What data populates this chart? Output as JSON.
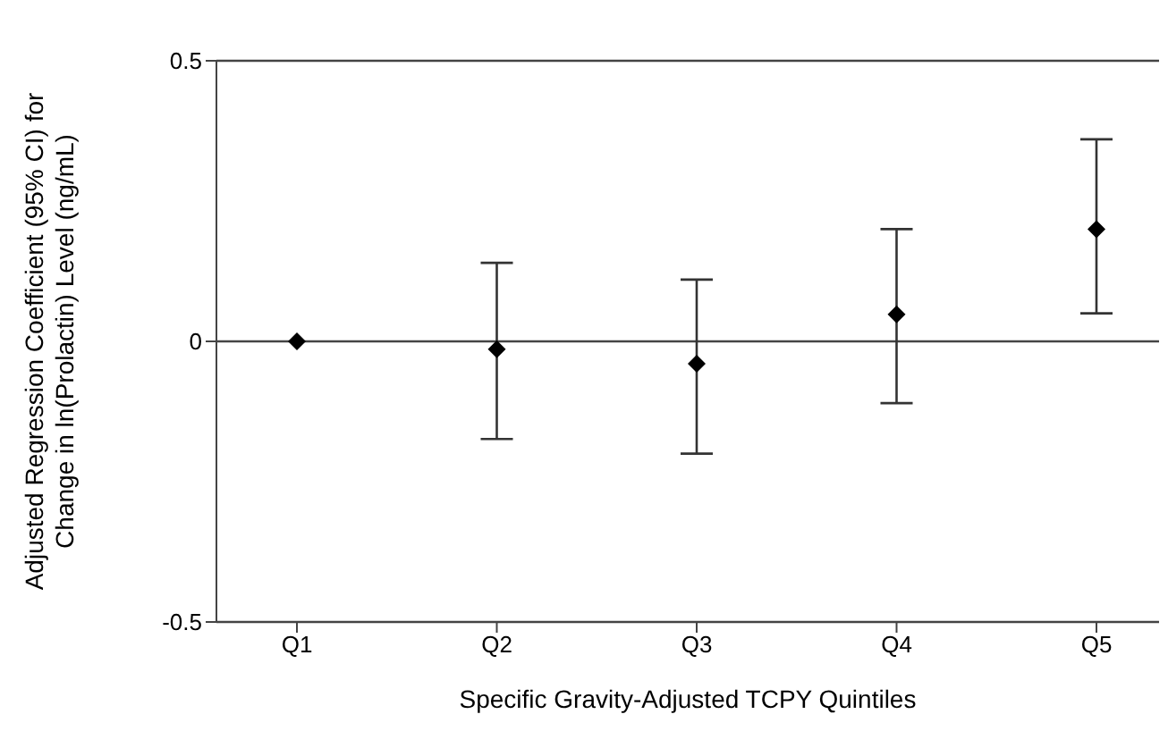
{
  "chart_data": {
    "type": "scatter",
    "xlabel": "Specific Gravity-Adjusted TCPY Quintiles",
    "ylabel": "Adjusted Regression Coefficient (95% CI) for\nChange in ln(Prolactin) Level (ng/mL)",
    "categories": [
      "Q1",
      "Q2",
      "Q3",
      "Q4",
      "Q5"
    ],
    "values": [
      0,
      -0.014,
      -0.04,
      0.048,
      0.2
    ],
    "errors": [
      null,
      [
        -0.174,
        0.14
      ],
      [
        -0.2,
        0.11
      ],
      [
        -0.11,
        0.2
      ],
      [
        0.05,
        0.36
      ]
    ],
    "color": "#000000",
    "marker": "diamond",
    "ylim": [
      -0.5,
      0.5
    ],
    "yticks": [
      -0.5,
      0,
      0.5
    ],
    "grid": "y"
  }
}
